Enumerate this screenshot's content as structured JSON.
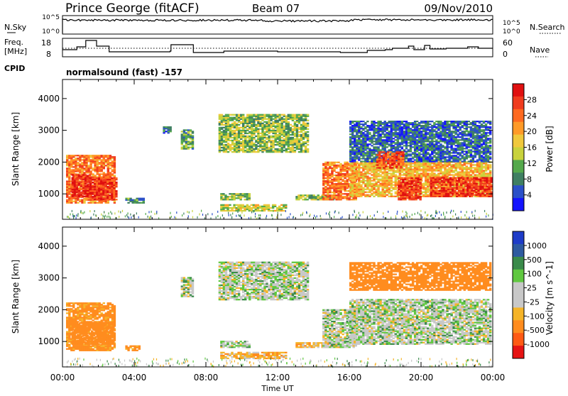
{
  "header": {
    "station": "Prince George (fitACF)",
    "beam": "Beam 07",
    "date": "09/Nov/2010"
  },
  "noise_panel": {
    "left_label": "N.Sky",
    "right_label": "N.Search",
    "tick_top": "10^5",
    "tick_bottom": "10^0"
  },
  "freq_panel": {
    "label_line1": "Freq.",
    "label_line2": "[MHz]",
    "left_ticks": [
      "18",
      "8"
    ],
    "right_ticks": [
      "60",
      "0"
    ],
    "right_label": "Nave",
    "cpid_label": "CPID",
    "program": "normalsound (fast) -157"
  },
  "chart_data": [
    {
      "type": "heatmap",
      "title": "",
      "parameter": "Power",
      "ylabel": "Slant Range [km]",
      "xlabel": "",
      "xlim": [
        "00:00",
        "24:00"
      ],
      "ylim": [
        200,
        4600
      ],
      "y_ticks": [
        "1000",
        "2000",
        "3000",
        "4000"
      ],
      "colorbar": {
        "label": "Power [dB]",
        "ticks": [
          "4",
          "8",
          "12",
          "16",
          "20",
          "24",
          "28"
        ],
        "colors": [
          "#1414ff",
          "#2b50c8",
          "#3f7f62",
          "#55a94c",
          "#c8d23c",
          "#f0c83c",
          "#ff9a28",
          "#ff6a20",
          "#f03c1e",
          "#e01010"
        ]
      },
      "echo_regions": [
        {
          "t0": 0.2,
          "t1": 2.9,
          "r0": 700,
          "r1": 2200,
          "level": 22
        },
        {
          "t0": 0.5,
          "t1": 1.5,
          "r0": 900,
          "r1": 1600,
          "level": 28
        },
        {
          "t0": 1.5,
          "t1": 3.0,
          "r0": 800,
          "r1": 1500,
          "level": 26
        },
        {
          "t0": 6.6,
          "t1": 7.3,
          "r0": 2400,
          "r1": 3000,
          "level": 10
        },
        {
          "t0": 8.7,
          "t1": 13.7,
          "r0": 2300,
          "r1": 3500,
          "level": 12
        },
        {
          "t0": 8.8,
          "t1": 10.4,
          "r0": 800,
          "r1": 1000,
          "level": 12
        },
        {
          "t0": 8.8,
          "t1": 12.5,
          "r0": 450,
          "r1": 650,
          "level": 14
        },
        {
          "t0": 13.0,
          "t1": 15.5,
          "r0": 800,
          "r1": 950,
          "level": 12
        },
        {
          "t0": 14.5,
          "t1": 16.3,
          "r0": 800,
          "r1": 2000,
          "level": 22
        },
        {
          "t0": 16.0,
          "t1": 23.9,
          "r0": 900,
          "r1": 2000,
          "level": 18
        },
        {
          "t0": 16.0,
          "t1": 23.9,
          "r0": 2000,
          "r1": 3300,
          "level": 6
        },
        {
          "t0": 17.5,
          "t1": 19.0,
          "r0": 1800,
          "r1": 2300,
          "level": 24
        },
        {
          "t0": 18.7,
          "t1": 20.0,
          "r0": 800,
          "r1": 1500,
          "level": 26
        },
        {
          "t0": 20.5,
          "t1": 23.9,
          "r0": 900,
          "r1": 1500,
          "level": 26
        },
        {
          "t0": 3.5,
          "t1": 4.5,
          "r0": 700,
          "r1": 850,
          "level": 8
        },
        {
          "t0": 5.6,
          "t1": 6.0,
          "r0": 2900,
          "r1": 3100,
          "level": 6
        }
      ]
    },
    {
      "type": "heatmap",
      "title": "",
      "parameter": "Velocity",
      "ylabel": "Slant Range [km]",
      "xlabel": "Time UT",
      "x_ticks": [
        "00:00",
        "04:00",
        "08:00",
        "12:00",
        "16:00",
        "20:00",
        "00:00"
      ],
      "xlim": [
        "00:00",
        "24:00"
      ],
      "ylim": [
        200,
        4600
      ],
      "y_ticks": [
        "1000",
        "2000",
        "3000",
        "4000"
      ],
      "colorbar": {
        "label": "Velocity [m s^-1]",
        "ticks": [
          "1000",
          "500",
          "100",
          "25",
          "-25",
          "-100",
          "-500",
          "-1000"
        ],
        "colors": [
          "#1e3cc8",
          "#2e5aa0",
          "#3a8a4a",
          "#60c840",
          "#c8c8c8",
          "#c8c8c8",
          "#f5b428",
          "#ff8c1e",
          "#ff5a14",
          "#e61414"
        ]
      },
      "echo_regions": [
        {
          "t0": 0.2,
          "t1": 2.9,
          "r0": 700,
          "r1": 2200,
          "level": -200
        },
        {
          "t0": 0.5,
          "t1": 2.8,
          "r0": 900,
          "r1": 1600,
          "level": -300
        },
        {
          "t0": 6.6,
          "t1": 7.3,
          "r0": 2400,
          "r1": 3000,
          "level": 0
        },
        {
          "t0": 8.7,
          "t1": 13.7,
          "r0": 2300,
          "r1": 3500,
          "level": 0
        },
        {
          "t0": 8.8,
          "t1": 10.4,
          "r0": 800,
          "r1": 1000,
          "level": 0
        },
        {
          "t0": 8.8,
          "t1": 12.5,
          "r0": 450,
          "r1": 650,
          "level": -110
        },
        {
          "t0": 13.0,
          "t1": 15.5,
          "r0": 800,
          "r1": 950,
          "level": -110
        },
        {
          "t0": 14.5,
          "t1": 16.3,
          "r0": 800,
          "r1": 2000,
          "level": 0
        },
        {
          "t0": 16.0,
          "t1": 23.9,
          "r0": 900,
          "r1": 2300,
          "level": 0
        },
        {
          "t0": 16.0,
          "t1": 23.9,
          "r0": 2600,
          "r1": 3500,
          "level": -300
        },
        {
          "t0": 3.5,
          "t1": 4.3,
          "r0": 700,
          "r1": 850,
          "level": -200
        }
      ]
    }
  ]
}
